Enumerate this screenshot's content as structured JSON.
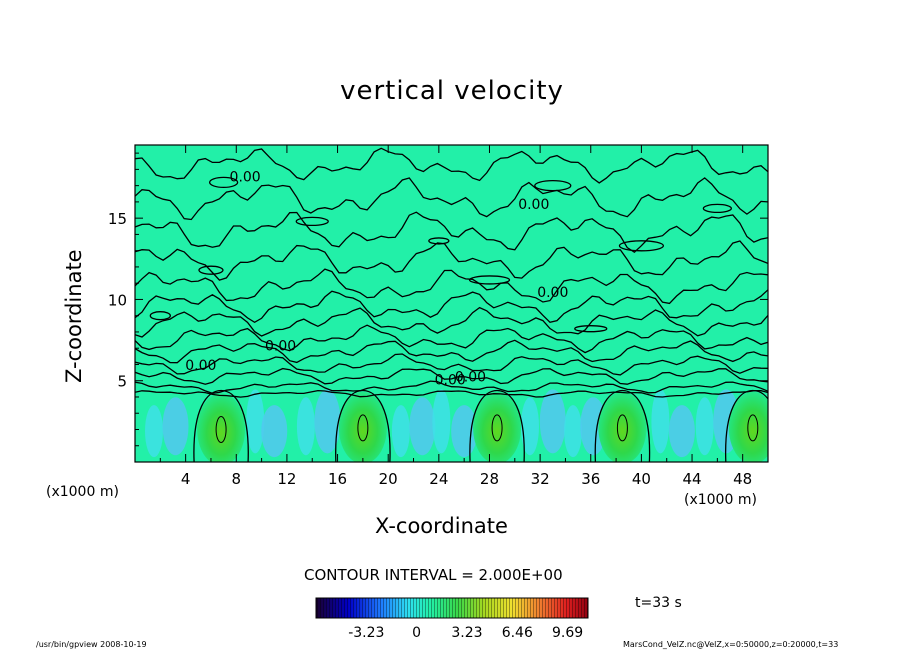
{
  "title": "vertical velocity",
  "xlabel": "X-coordinate",
  "ylabel": "Z-coordinate",
  "x_unit_label": "(x1000 m)",
  "y_unit_label": "(x1000 m)",
  "contour_interval_text": "CONTOUR INTERVAL = 2.000E+00",
  "time_text": "t=33 s",
  "footer_left": "/usr/bin/gpview   2008-10-19",
  "footer_right": "MarsCond_VelZ.nc@VelZ,x=0:50000,z=0:20000,t=33",
  "colors": {
    "background_field": "#22f0a8",
    "updraft": "#2fd84a",
    "updraft_core": "#6bd61c",
    "downdraft": "#46d4e8",
    "contour": "#000000"
  },
  "chart_data": {
    "type": "heatmap",
    "title": "vertical velocity",
    "xlabel": "X-coordinate",
    "ylabel": "Z-coordinate",
    "xlim": [
      0,
      50
    ],
    "ylim": [
      0,
      19.5
    ],
    "xticks": [
      4,
      8,
      12,
      16,
      20,
      24,
      28,
      32,
      36,
      40,
      44,
      48
    ],
    "yticks": [
      5,
      10,
      15
    ],
    "contour_interval": 2.0,
    "contour_labels": [
      {
        "text": "0.00",
        "x": 8.7,
        "z": 17.5
      },
      {
        "text": "0.00",
        "x": 31.5,
        "z": 15.8
      },
      {
        "text": "0.00",
        "x": 33.0,
        "z": 10.4
      },
      {
        "text": "0.00",
        "x": 11.5,
        "z": 7.1
      },
      {
        "text": "0.00",
        "x": 5.2,
        "z": 5.9
      },
      {
        "text": "0.00",
        "x": 26.5,
        "z": 5.2
      },
      {
        "text": "0.00",
        "x": 24.9,
        "z": 5.0
      }
    ],
    "updrafts": [
      {
        "x": 6.8,
        "z": 2.0
      },
      {
        "x": 18.0,
        "z": 2.1
      },
      {
        "x": 28.6,
        "z": 2.1
      },
      {
        "x": 38.5,
        "z": 2.1
      },
      {
        "x": 48.8,
        "z": 2.1
      }
    ],
    "colorbar": {
      "tick_labels": [
        "-3.23",
        "0",
        "3.23",
        "6.46",
        "9.69"
      ],
      "tick_values": [
        -3.23,
        0,
        3.23,
        6.46,
        9.69
      ],
      "range": [
        -6.46,
        11.0
      ]
    }
  }
}
